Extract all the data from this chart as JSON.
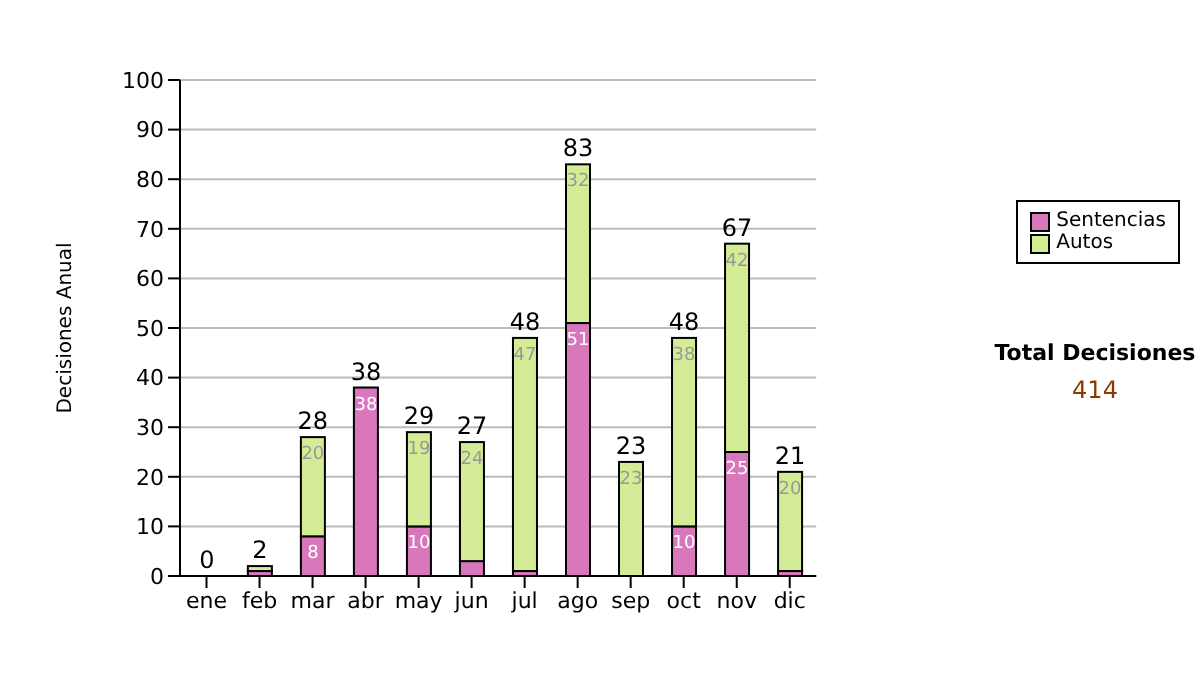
{
  "chart_data": {
    "type": "bar",
    "stacked": true,
    "ylabel": "Decisiones Anual",
    "categories": [
      "ene",
      "feb",
      "mar",
      "abr",
      "may",
      "jun",
      "jul",
      "ago",
      "sep",
      "oct",
      "nov",
      "dic"
    ],
    "series": [
      {
        "name": "Sentencias",
        "color": "#d977bd",
        "values": [
          0,
          1,
          8,
          38,
          10,
          3,
          1,
          51,
          0,
          10,
          25,
          1
        ],
        "value_labels": [
          null,
          null,
          "8",
          "38",
          "10",
          null,
          null,
          "51",
          null,
          "10",
          "25",
          null
        ]
      },
      {
        "name": "Autos",
        "color": "#d4ec96",
        "values": [
          0,
          1,
          20,
          0,
          19,
          24,
          47,
          32,
          23,
          38,
          42,
          20
        ],
        "value_labels": [
          null,
          null,
          "20",
          null,
          "19",
          "24",
          "47",
          "32",
          "23",
          "38",
          "42",
          "20"
        ]
      }
    ],
    "totals": [
      "0",
      "2",
      "28",
      "38",
      "29",
      "27",
      "48",
      "83",
      "23",
      "48",
      "67",
      "21"
    ],
    "ylim": [
      0,
      100
    ],
    "yticks": [
      0,
      10,
      20,
      30,
      40,
      50,
      60,
      70,
      80,
      90,
      100
    ],
    "grid": "y",
    "legend": "right",
    "annotations": [
      "Total Decisiones",
      "414"
    ]
  }
}
